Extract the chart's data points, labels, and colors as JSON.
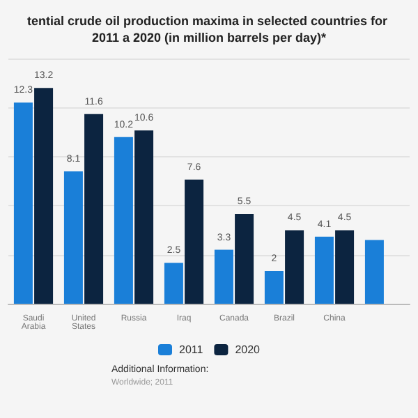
{
  "chart_data": {
    "type": "bar",
    "title": "tential crude oil production maxima in selected countries for 2011 a 2020 (in million barrels per day)*",
    "categories": [
      "Saudi Arabia",
      "United States",
      "Russia",
      "Iraq",
      "Canada",
      "Brazil",
      "China",
      null
    ],
    "series": [
      {
        "name": "2011",
        "color": "#1a7fd8",
        "values": [
          12.3,
          8.1,
          10.2,
          2.5,
          3.3,
          2,
          4.1,
          3.9
        ],
        "value_labels": [
          "12.3",
          "8.1",
          "10.2",
          "2.5",
          "3.3",
          "2",
          "4.1",
          null
        ]
      },
      {
        "name": "2020",
        "color": "#0c2440",
        "values": [
          13.2,
          11.6,
          10.6,
          7.6,
          5.5,
          4.5,
          4.5,
          null
        ],
        "value_labels": [
          "13.2",
          "11.6",
          "10.6",
          "7.6",
          "5.5",
          "4.5",
          "4.5",
          null
        ]
      }
    ],
    "grid": "y",
    "legend": "bottom",
    "annotations": [
      "Additional Information:",
      "Worldwide; 2011"
    ]
  }
}
